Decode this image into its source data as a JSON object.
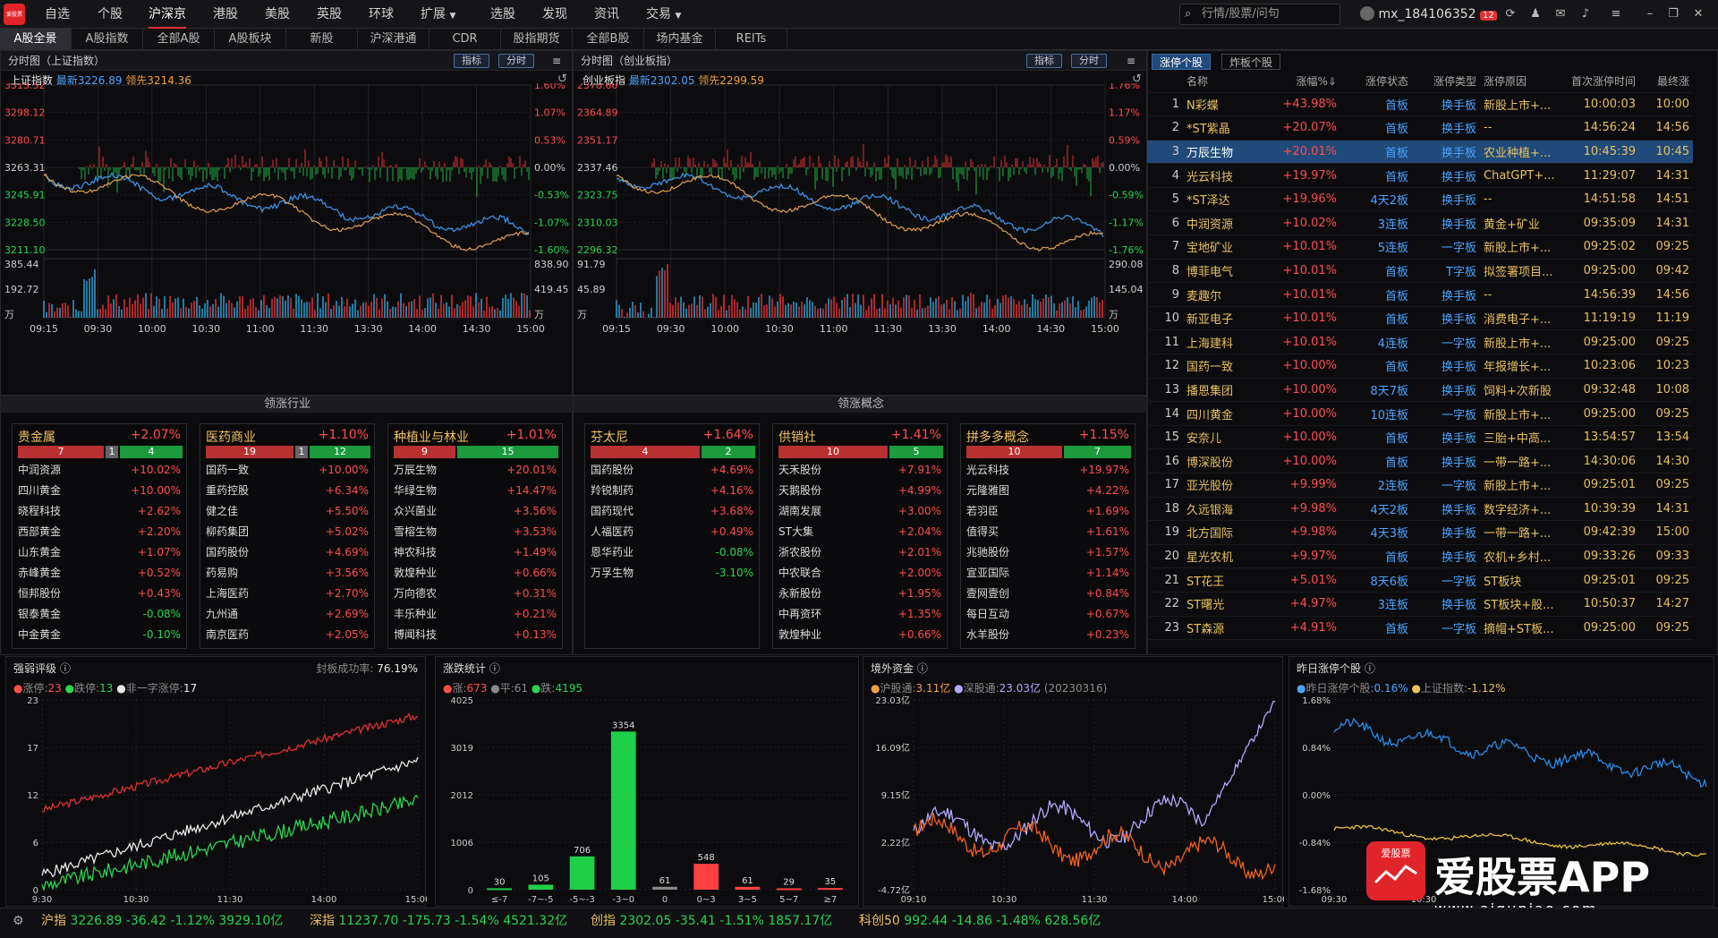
{
  "app": {
    "logo": "爱股票"
  },
  "nav": [
    "自选",
    "个股",
    "沪深京",
    "港股",
    "美股",
    "英股",
    "环球",
    "扩展",
    "选股",
    "发现",
    "资讯",
    "交易"
  ],
  "search": {
    "placeholder": "行情/股票/问句"
  },
  "user": {
    "name": "mx_184106352",
    "badge": "12"
  },
  "tabs": [
    "A股全景",
    "A股指数",
    "全部A股",
    "A股板块",
    "新股",
    "沪深港通",
    "CDR",
    "股指期货",
    "全部B股",
    "场内基金",
    "REITs"
  ],
  "sh_chart": {
    "title": "分时图（上证指数）",
    "btn_index": "指标",
    "btn_period": "分时",
    "name": "上证指数",
    "latest": "最新3226.89",
    "lead": "领先3214.36",
    "left_ticks": [
      "3315.52",
      "3298.12",
      "3280.71",
      "3263.31",
      "3245.91",
      "3228.50",
      "3211.10"
    ],
    "right_ticks": [
      "1.60%",
      "1.07%",
      "0.53%",
      "0.00%",
      "-0.53%",
      "-1.07%",
      "-1.60%"
    ],
    "vol_left": [
      "385.44",
      "192.72",
      "万"
    ],
    "vol_right": [
      "838.90",
      "419.45",
      "万"
    ],
    "times": [
      "09:15",
      "09:30",
      "10:00",
      "10:30",
      "11:00",
      "11:30",
      "13:30",
      "14:00",
      "14:30",
      "15:00"
    ]
  },
  "cy_chart": {
    "title": "分时图（创业板指）",
    "btn_index": "指标",
    "btn_period": "分时",
    "name": "创业板指",
    "latest": "最新2302.05",
    "lead": "领先2299.59",
    "left_ticks": [
      "2378.60",
      "2364.89",
      "2351.17",
      "2337.46",
      "2323.75",
      "2310.03",
      "2296.32"
    ],
    "right_ticks": [
      "1.76%",
      "1.17%",
      "0.59%",
      "0.00%",
      "-0.59%",
      "-1.17%",
      "-1.76%"
    ],
    "vol_left": [
      "91.79",
      "45.89",
      "万"
    ],
    "vol_right": [
      "290.08",
      "145.04",
      "万"
    ],
    "times": [
      "09:15",
      "09:30",
      "10:00",
      "10:30",
      "11:00",
      "11:30",
      "13:30",
      "14:00",
      "14:30",
      "15:00"
    ]
  },
  "industry_title": "领涨行业",
  "concept_title": "领涨概念",
  "industry_cards": [
    {
      "name": "贵金属",
      "pct": "+2.07%",
      "up": "7",
      "flat": "1",
      "down": "4",
      "up_frac": 0.58,
      "rows": [
        [
          "中润资源",
          "+10.02%"
        ],
        [
          "四川黄金",
          "+10.00%"
        ],
        [
          "晓程科技",
          "+2.62%"
        ],
        [
          "西部黄金",
          "+2.20%"
        ],
        [
          "山东黄金",
          "+1.07%"
        ],
        [
          "赤峰黄金",
          "+0.52%"
        ],
        [
          "恒邦股份",
          "+0.43%"
        ],
        [
          "银泰黄金",
          "-0.08%"
        ],
        [
          "中金黄金",
          "-0.10%"
        ]
      ]
    },
    {
      "name": "医药商业",
      "pct": "+1.10%",
      "up": "19",
      "flat": "1",
      "down": "12",
      "up_frac": 0.59,
      "rows": [
        [
          "国药一致",
          "+10.00%"
        ],
        [
          "重药控股",
          "+6.34%"
        ],
        [
          "健之佳",
          "+5.50%"
        ],
        [
          "柳药集团",
          "+5.02%"
        ],
        [
          "国药股份",
          "+4.69%"
        ],
        [
          "药易购",
          "+3.56%"
        ],
        [
          "上海医药",
          "+2.70%"
        ],
        [
          "九州通",
          "+2.69%"
        ],
        [
          "南京医药",
          "+2.05%"
        ]
      ]
    },
    {
      "name": "种植业与林业",
      "pct": "+1.01%",
      "up": "9",
      "flat": "",
      "down": "15",
      "up_frac": 0.38,
      "rows": [
        [
          "万辰生物",
          "+20.01%"
        ],
        [
          "华绿生物",
          "+14.47%"
        ],
        [
          "众兴菌业",
          "+3.56%"
        ],
        [
          "雪榕生物",
          "+3.53%"
        ],
        [
          "神农科技",
          "+1.49%"
        ],
        [
          "敦煌种业",
          "+0.66%"
        ],
        [
          "万向德农",
          "+0.31%"
        ],
        [
          "丰乐种业",
          "+0.21%"
        ],
        [
          "博闻科技",
          "+0.13%"
        ]
      ]
    }
  ],
  "concept_cards": [
    {
      "name": "芬太尼",
      "pct": "+1.64%",
      "up": "4",
      "flat": "",
      "down": "2",
      "up_frac": 0.67,
      "rows": [
        [
          "国药股份",
          "+4.69%"
        ],
        [
          "羚锐制药",
          "+4.16%"
        ],
        [
          "国药现代",
          "+3.68%"
        ],
        [
          "人福医药",
          "+0.49%"
        ],
        [
          "恩华药业",
          "-0.08%"
        ],
        [
          "万孚生物",
          "-3.10%"
        ]
      ]
    },
    {
      "name": "供销社",
      "pct": "+1.41%",
      "up": "10",
      "flat": "",
      "down": "5",
      "up_frac": 0.67,
      "rows": [
        [
          "天禾股份",
          "+7.91%"
        ],
        [
          "天鹅股份",
          "+4.99%"
        ],
        [
          "湖南发展",
          "+3.00%"
        ],
        [
          "ST大集",
          "+2.04%"
        ],
        [
          "浙农股份",
          "+2.01%"
        ],
        [
          "中农联合",
          "+2.00%"
        ],
        [
          "永新股份",
          "+1.95%"
        ],
        [
          "中再资环",
          "+1.35%"
        ],
        [
          "敦煌种业",
          "+0.66%"
        ]
      ]
    },
    {
      "name": "拼多多概念",
      "pct": "+1.15%",
      "up": "10",
      "flat": "",
      "down": "7",
      "up_frac": 0.59,
      "rows": [
        [
          "光云科技",
          "+19.97%"
        ],
        [
          "元隆雅图",
          "+4.22%"
        ],
        [
          "若羽臣",
          "+1.69%"
        ],
        [
          "值得买",
          "+1.61%"
        ],
        [
          "兆驰股份",
          "+1.57%"
        ],
        [
          "宣亚国际",
          "+1.14%"
        ],
        [
          "壹网壹创",
          "+0.84%"
        ],
        [
          "每日互动",
          "+0.67%"
        ],
        [
          "水羊股份",
          "+0.23%"
        ]
      ]
    }
  ],
  "zt": {
    "tab_active": "涨停个股",
    "tab_other": "炸板个股",
    "headers": [
      "",
      "名称",
      "涨幅%⇓",
      "涨停状态",
      "涨停类型",
      "涨停原因",
      "首次涨停时间",
      "最终涨"
    ],
    "rows": [
      [
        "1",
        "N彩蝶",
        "+43.98%",
        "首板",
        "换手板",
        "新股上市+...",
        "10:00:03",
        "10:00"
      ],
      [
        "2",
        "*ST紫晶",
        "+20.07%",
        "首板",
        "换手板",
        "--",
        "14:56:24",
        "14:56"
      ],
      [
        "3",
        "万辰生物",
        "+20.01%",
        "首板",
        "换手板",
        "农业种植+...",
        "10:45:39",
        "10:45"
      ],
      [
        "4",
        "光云科技",
        "+19.97%",
        "首板",
        "换手板",
        "ChatGPT+...",
        "11:29:07",
        "14:31"
      ],
      [
        "5",
        "*ST泽达",
        "+19.96%",
        "4天2板",
        "换手板",
        "--",
        "14:51:58",
        "14:51"
      ],
      [
        "6",
        "中润资源",
        "+10.02%",
        "3连板",
        "换手板",
        "黄金+矿业",
        "09:35:09",
        "14:31"
      ],
      [
        "7",
        "宝地矿业",
        "+10.01%",
        "5连板",
        "一字板",
        "新股上市+...",
        "09:25:02",
        "09:25"
      ],
      [
        "8",
        "博菲电气",
        "+10.01%",
        "首板",
        "T字板",
        "拟签署项目...",
        "09:25:00",
        "09:42"
      ],
      [
        "9",
        "麦趣尔",
        "+10.01%",
        "首板",
        "换手板",
        "--",
        "14:56:39",
        "14:56"
      ],
      [
        "10",
        "新亚电子",
        "+10.01%",
        "首板",
        "换手板",
        "消费电子+...",
        "11:19:19",
        "11:19"
      ],
      [
        "11",
        "上海建科",
        "+10.01%",
        "4连板",
        "一字板",
        "新股上市+...",
        "09:25:00",
        "09:25"
      ],
      [
        "12",
        "国药一致",
        "+10.00%",
        "首板",
        "换手板",
        "年报增长+...",
        "10:23:06",
        "10:23"
      ],
      [
        "13",
        "播恩集团",
        "+10.00%",
        "8天7板",
        "换手板",
        "饲料+次新股",
        "09:32:48",
        "10:08"
      ],
      [
        "14",
        "四川黄金",
        "+10.00%",
        "10连板",
        "一字板",
        "新股上市+...",
        "09:25:00",
        "09:25"
      ],
      [
        "15",
        "安奈儿",
        "+10.00%",
        "首板",
        "换手板",
        "三胎+中高...",
        "13:54:57",
        "13:54"
      ],
      [
        "16",
        "博深股份",
        "+10.00%",
        "首板",
        "换手板",
        "一带一路+...",
        "14:30:06",
        "14:30"
      ],
      [
        "17",
        "亚光股份",
        "+9.99%",
        "2连板",
        "一字板",
        "新股上市+...",
        "09:25:01",
        "09:25"
      ],
      [
        "18",
        "久远银海",
        "+9.98%",
        "4天2板",
        "换手板",
        "数字经济+...",
        "10:39:39",
        "14:31"
      ],
      [
        "19",
        "北方国际",
        "+9.98%",
        "4天3板",
        "换手板",
        "一带一路+...",
        "09:42:39",
        "15:00"
      ],
      [
        "20",
        "星光农机",
        "+9.97%",
        "首板",
        "换手板",
        "农机+乡村...",
        "09:33:26",
        "09:33"
      ],
      [
        "21",
        "ST花王",
        "+5.01%",
        "8天6板",
        "一字板",
        "ST板块",
        "09:25:01",
        "09:25"
      ],
      [
        "22",
        "ST曙光",
        "+4.97%",
        "3连板",
        "换手板",
        "ST板块+股...",
        "10:50:37",
        "14:27"
      ],
      [
        "23",
        "ST森源",
        "+4.91%",
        "首板",
        "一字板",
        "摘帽+ST板...",
        "09:25:00",
        "09:25"
      ]
    ]
  },
  "strong_weak": {
    "title": "强弱评级",
    "rate_label": "封板成功率:",
    "rate": "76.19%",
    "legend": [
      [
        "涨停:",
        "23"
      ],
      [
        "跌停:",
        "13"
      ],
      [
        "非一字涨停:",
        "17"
      ]
    ],
    "yticks": [
      "23",
      "17",
      "12",
      "6",
      "0"
    ],
    "xticks": [
      "9:30",
      "10:30",
      "11:30",
      "14:00",
      "15:00"
    ]
  },
  "updown": {
    "title": "涨跌统计",
    "legend": [
      [
        "涨:",
        "673"
      ],
      [
        "平:",
        "61"
      ],
      [
        "跌:",
        "4195"
      ]
    ],
    "yticks": [
      "4025",
      "3019",
      "2012",
      "1006",
      "0"
    ],
    "chart_data": {
      "type": "bar",
      "categories": [
        "≤-7",
        "-7~-5",
        "-5~-3",
        "-3~0",
        "0",
        "0~3",
        "3~5",
        "5~7",
        "≥7"
      ],
      "values": [
        30,
        105,
        706,
        3354,
        61,
        548,
        61,
        29,
        35
      ],
      "ylim": [
        0,
        4025
      ]
    }
  },
  "foreign": {
    "title": "境外资金",
    "legend": [
      [
        "沪股通:",
        "3.11亿"
      ],
      [
        "深股通:",
        "23.03亿"
      ]
    ],
    "date": "(20230316)",
    "yticks": [
      "23.03亿",
      "16.09亿",
      "9.15亿",
      "2.22亿",
      "-4.72亿"
    ],
    "xticks": [
      "09:10",
      "10:30",
      "11:30",
      "14:00",
      "15:00"
    ]
  },
  "yesterday": {
    "title": "昨日涨停个股",
    "legend": [
      [
        "昨日涨停个股:",
        "0.16%"
      ],
      [
        "上证指数:",
        "-1.12%"
      ]
    ],
    "yticks": [
      "1.68%",
      "0.84%",
      "0.00%",
      "-0.84%",
      "-1.68%"
    ],
    "xticks": [
      "09:30",
      "10:30"
    ]
  },
  "watermark": {
    "brand": "爱股票APP",
    "url": "www.aigupiao.com"
  },
  "status": {
    "items": [
      [
        "沪指",
        "3226.89",
        "-36.42",
        "-1.12%",
        "3929.10亿"
      ],
      [
        "深指",
        "11237.70",
        "-175.73",
        "-1.54%",
        "4521.32亿"
      ],
      [
        "创指",
        "2302.05",
        "-35.41",
        "-1.51%",
        "1857.17亿"
      ],
      [
        "科创50",
        "992.44",
        "-14.86",
        "-1.48%",
        "628.56亿"
      ]
    ]
  },
  "colors": {
    "up": "#ff4d4d",
    "down": "#2bd34f",
    "accent": "#e03030",
    "select": "#1f4a7a"
  }
}
